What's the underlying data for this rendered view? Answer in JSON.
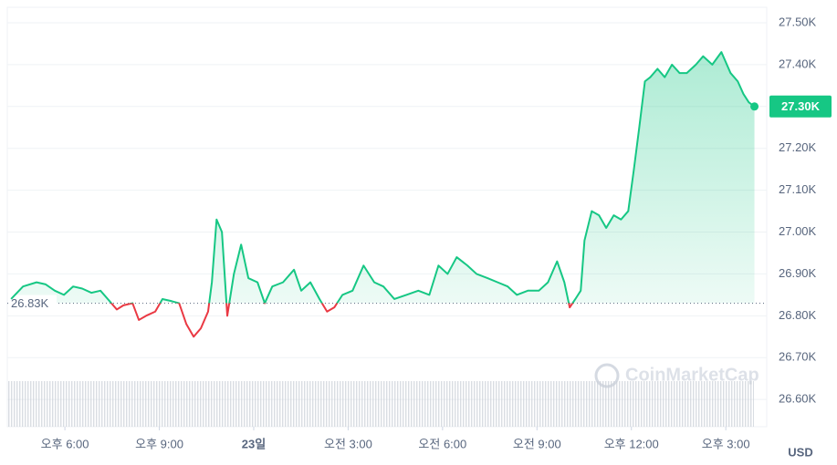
{
  "chart_data": {
    "type": "line",
    "x": [
      16.29,
      16.67,
      17.1,
      17.39,
      17.68,
      17.97,
      18.26,
      18.55,
      18.84,
      19.13,
      19.42,
      19.65,
      19.86,
      20.15,
      20.35,
      20.58,
      20.87,
      21.1,
      21.39,
      21.63,
      21.86,
      22.09,
      22.32,
      22.55,
      22.67,
      22.82,
      22.99,
      23.16,
      23.37,
      23.6,
      23.83,
      24.12,
      24.35,
      24.59,
      24.93,
      25.28,
      25.51,
      25.8,
      26.09,
      26.33,
      26.56,
      26.82,
      27.14,
      27.49,
      27.83,
      28.12,
      28.47,
      28.85,
      29.23,
      29.58,
      29.87,
      30.16,
      30.45,
      30.79,
      31.08,
      31.43,
      31.75,
      32.07,
      32.36,
      32.71,
      33.06,
      33.35,
      33.64,
      33.87,
      34.04,
      34.22,
      34.39,
      34.51,
      34.74,
      34.97,
      35.2,
      35.44,
      35.67,
      35.9,
      36.08,
      36.25,
      36.43,
      36.6,
      36.83,
      37.06,
      37.29,
      37.53,
      37.76,
      38.05,
      38.28,
      38.57,
      38.86,
      39.15,
      39.38,
      39.56,
      39.73,
      39.91
    ],
    "series": [
      {
        "color": "#16c784",
        "down_color": "#ea3943",
        "values": [
          26840,
          26870,
          26880,
          26875,
          26860,
          26850,
          26870,
          26865,
          26855,
          26860,
          26835,
          26815,
          26825,
          26830,
          26790,
          26800,
          26810,
          26840,
          26835,
          26830,
          26780,
          26750,
          26770,
          26810,
          26880,
          27030,
          27000,
          26800,
          26900,
          26970,
          26890,
          26880,
          26830,
          26870,
          26880,
          26910,
          26860,
          26880,
          26840,
          26810,
          26820,
          26850,
          26860,
          26920,
          26880,
          26870,
          26840,
          26850,
          26860,
          26850,
          26920,
          26900,
          26940,
          26920,
          26900,
          26890,
          26880,
          26870,
          26850,
          26860,
          26860,
          26880,
          26930,
          26880,
          26820,
          26840,
          26860,
          26980,
          27050,
          27040,
          27010,
          27040,
          27030,
          27050,
          27150,
          27250,
          27360,
          27370,
          27390,
          27370,
          27400,
          27380,
          27380,
          27400,
          27420,
          27400,
          27430,
          27380,
          27360,
          27330,
          27310,
          27300
        ]
      }
    ],
    "xlim": [
      16.17,
      40.3
    ],
    "xticks": [
      {
        "value": 18,
        "label": "오후 6:00"
      },
      {
        "value": 21,
        "label": "오후 9:00"
      },
      {
        "value": 24,
        "label": "23일"
      },
      {
        "value": 27,
        "label": "오전 3:00"
      },
      {
        "value": 30,
        "label": "오전 6:00"
      },
      {
        "value": 33,
        "label": "오전 9:00"
      },
      {
        "value": 36,
        "label": "오후 12:00"
      },
      {
        "value": 39,
        "label": "오후 3:00"
      }
    ],
    "ylim": [
      26535,
      27537
    ],
    "yticks": [
      {
        "value": 26600,
        "label": "26.60K"
      },
      {
        "value": 26700,
        "label": "26.70K"
      },
      {
        "value": 26800,
        "label": "26.80K"
      },
      {
        "value": 26900,
        "label": "26.90K"
      },
      {
        "value": 27000,
        "label": "27.00K"
      },
      {
        "value": 27100,
        "label": "27.10K"
      },
      {
        "value": 27200,
        "label": "27.20K"
      },
      {
        "value": 27300,
        "label": "27.30K"
      },
      {
        "value": 27400,
        "label": "27.40K"
      },
      {
        "value": 27500,
        "label": "27.50K"
      }
    ],
    "baseline": {
      "value": 26830,
      "label": "26.83K"
    },
    "current_label": "27.30K",
    "currency": "USD",
    "watermark": "CoinMarketCap",
    "grid": true
  }
}
